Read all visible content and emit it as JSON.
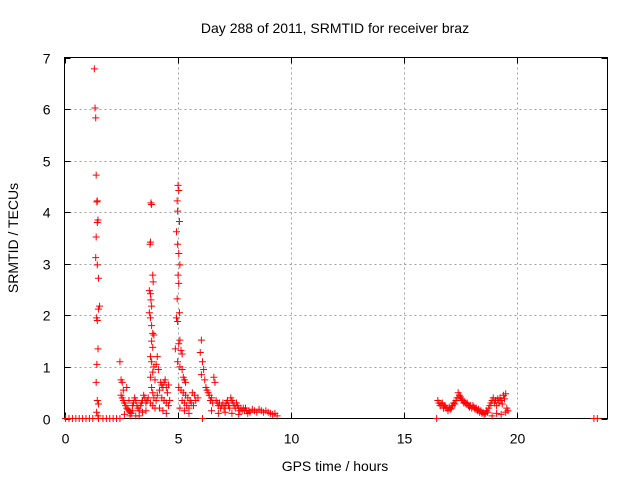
{
  "chart_data": {
    "type": "scatter",
    "title": "Day 288 of 2011, SRMTID for receiver braz",
    "xlabel": "GPS time / hours",
    "ylabel": "SRMTID / TECUs",
    "xlim": [
      0,
      24
    ],
    "ylim": [
      0,
      7
    ],
    "xticks": [
      0,
      5,
      10,
      15,
      20
    ],
    "yticks": [
      0,
      1,
      2,
      3,
      4,
      5,
      6,
      7
    ],
    "grid": true,
    "marker": "plus",
    "color": "#ff0000",
    "points": [
      [
        0.05,
        0
      ],
      [
        0.2,
        0
      ],
      [
        0.35,
        0
      ],
      [
        0.5,
        0
      ],
      [
        0.65,
        0
      ],
      [
        0.8,
        0
      ],
      [
        0.95,
        0
      ],
      [
        1.1,
        0
      ],
      [
        1.25,
        0
      ],
      [
        1.5,
        0
      ],
      [
        1.7,
        0
      ],
      [
        1.85,
        0
      ],
      [
        2.0,
        0
      ],
      [
        2.15,
        0
      ],
      [
        2.3,
        0
      ],
      [
        2.45,
        0
      ],
      [
        1.32,
        6.78
      ],
      [
        1.35,
        6.02
      ],
      [
        1.38,
        5.83
      ],
      [
        1.4,
        4.72
      ],
      [
        1.43,
        4.2
      ],
      [
        1.45,
        4.22
      ],
      [
        1.48,
        3.85
      ],
      [
        1.45,
        3.8
      ],
      [
        1.4,
        3.52
      ],
      [
        1.38,
        3.12
      ],
      [
        1.45,
        2.98
      ],
      [
        1.5,
        2.72
      ],
      [
        1.55,
        2.18
      ],
      [
        1.5,
        2.12
      ],
      [
        1.42,
        1.95
      ],
      [
        1.45,
        1.9
      ],
      [
        1.48,
        1.35
      ],
      [
        1.43,
        1.05
      ],
      [
        1.4,
        0.7
      ],
      [
        1.45,
        0.35
      ],
      [
        1.5,
        0.28
      ],
      [
        1.42,
        0.12
      ],
      [
        1.48,
        0.05
      ],
      [
        2.45,
        1.1
      ],
      [
        2.5,
        0.75
      ],
      [
        2.55,
        0.7
      ],
      [
        2.6,
        0.55
      ],
      [
        2.5,
        0.45
      ],
      [
        2.55,
        0.4
      ],
      [
        2.6,
        0.35
      ],
      [
        2.65,
        0.3
      ],
      [
        2.7,
        0.25
      ],
      [
        2.75,
        0.2
      ],
      [
        2.8,
        0.18
      ],
      [
        2.85,
        0.15
      ],
      [
        2.9,
        0.12
      ],
      [
        2.95,
        0.1
      ],
      [
        3.0,
        0.15
      ],
      [
        3.05,
        0.3
      ],
      [
        3.1,
        0.4
      ],
      [
        3.15,
        0.35
      ],
      [
        3.2,
        0.25
      ],
      [
        3.25,
        0.2
      ],
      [
        3.3,
        0.15
      ],
      [
        3.35,
        0.25
      ],
      [
        3.4,
        0.3
      ],
      [
        3.45,
        0.35
      ],
      [
        3.5,
        0.45
      ],
      [
        3.55,
        0.4
      ],
      [
        3.6,
        0.3
      ],
      [
        3.65,
        0.35
      ],
      [
        3.7,
        0.4
      ],
      [
        2.75,
        0.6
      ],
      [
        2.85,
        0.35
      ],
      [
        3.0,
        0.25
      ],
      [
        3.15,
        0.05
      ],
      [
        3.3,
        0.05
      ],
      [
        3.45,
        0.12
      ],
      [
        3.6,
        0.15
      ],
      [
        2.65,
        0.08
      ],
      [
        2.9,
        0.05
      ],
      [
        3.82,
        4.18
      ],
      [
        3.85,
        4.15
      ],
      [
        3.8,
        3.42
      ],
      [
        3.78,
        3.38
      ],
      [
        3.9,
        2.78
      ],
      [
        3.92,
        2.65
      ],
      [
        3.75,
        2.48
      ],
      [
        3.8,
        2.42
      ],
      [
        3.82,
        2.3
      ],
      [
        3.85,
        2.18
      ],
      [
        3.75,
        2.05
      ],
      [
        3.8,
        1.95
      ],
      [
        3.85,
        1.8
      ],
      [
        3.9,
        1.65
      ],
      [
        3.95,
        1.62
      ],
      [
        3.85,
        1.5
      ],
      [
        3.9,
        1.38
      ],
      [
        3.8,
        1.2
      ],
      [
        3.85,
        1.1
      ],
      [
        3.95,
        1.0
      ],
      [
        3.9,
        0.9
      ],
      [
        3.8,
        0.8
      ],
      [
        4.0,
        0.75
      ],
      [
        3.85,
        0.6
      ],
      [
        3.9,
        0.5
      ],
      [
        3.95,
        0.4
      ],
      [
        4.05,
        0.35
      ],
      [
        3.8,
        0.3
      ],
      [
        3.9,
        0.25
      ],
      [
        4.0,
        0.2
      ],
      [
        4.1,
        0.45
      ],
      [
        4.2,
        0.55
      ],
      [
        4.25,
        0.7
      ],
      [
        4.3,
        0.65
      ],
      [
        4.35,
        0.6
      ],
      [
        4.4,
        0.7
      ],
      [
        4.45,
        0.75
      ],
      [
        4.5,
        0.6
      ],
      [
        4.55,
        0.5
      ],
      [
        4.6,
        0.65
      ],
      [
        4.3,
        0.4
      ],
      [
        4.4,
        0.35
      ],
      [
        4.5,
        0.3
      ],
      [
        4.6,
        0.25
      ],
      [
        4.65,
        0.35
      ],
      [
        4.2,
        0.2
      ],
      [
        4.35,
        0.15
      ],
      [
        4.5,
        0.1
      ],
      [
        4.1,
        1.2
      ],
      [
        4.15,
        0.95
      ],
      [
        4.05,
        1.05
      ],
      [
        5.02,
        4.52
      ],
      [
        5.05,
        4.42
      ],
      [
        4.98,
        4.22
      ],
      [
        5.0,
        4.02
      ],
      [
        5.08,
        3.82
      ],
      [
        4.95,
        3.62
      ],
      [
        5.0,
        3.38
      ],
      [
        5.05,
        3.2
      ],
      [
        5.1,
        2.98
      ],
      [
        5.02,
        2.78
      ],
      [
        5.05,
        2.62
      ],
      [
        4.98,
        2.32
      ],
      [
        5.08,
        2.05
      ],
      [
        4.95,
        1.95
      ],
      [
        5.0,
        1.88
      ],
      [
        5.1,
        1.52
      ],
      [
        5.05,
        1.45
      ],
      [
        4.9,
        1.35
      ],
      [
        5.15,
        1.32
      ],
      [
        5.2,
        1.25
      ],
      [
        5.0,
        1.1
      ],
      [
        5.1,
        1.0
      ],
      [
        5.2,
        0.95
      ],
      [
        5.25,
        0.8
      ],
      [
        5.3,
        0.75
      ],
      [
        5.35,
        0.7
      ],
      [
        5.05,
        0.6
      ],
      [
        5.15,
        0.55
      ],
      [
        5.25,
        0.5
      ],
      [
        5.35,
        0.45
      ],
      [
        5.45,
        0.4
      ],
      [
        5.55,
        0.35
      ],
      [
        5.65,
        0.5
      ],
      [
        5.75,
        0.45
      ],
      [
        5.2,
        0.35
      ],
      [
        5.3,
        0.3
      ],
      [
        5.4,
        0.25
      ],
      [
        5.5,
        0.2
      ],
      [
        5.6,
        0.3
      ],
      [
        5.7,
        0.25
      ],
      [
        5.8,
        0.35
      ],
      [
        5.9,
        0.4
      ],
      [
        5.1,
        0.2
      ],
      [
        5.3,
        0.15
      ],
      [
        5.5,
        0.1
      ],
      [
        6.05,
        1.52
      ],
      [
        6.0,
        1.28
      ],
      [
        6.1,
        1.1
      ],
      [
        6.15,
        0.95
      ],
      [
        6.05,
        0.85
      ],
      [
        6.2,
        0.75
      ],
      [
        6.25,
        0.6
      ],
      [
        6.3,
        0.55
      ],
      [
        6.35,
        0.5
      ],
      [
        6.1,
        0.0
      ],
      [
        6.4,
        0.45
      ],
      [
        6.45,
        0.35
      ],
      [
        6.5,
        0.4
      ],
      [
        6.55,
        0.3
      ],
      [
        6.6,
        0.8
      ],
      [
        6.65,
        0.7
      ],
      [
        6.7,
        0.35
      ],
      [
        6.75,
        0.3
      ],
      [
        6.8,
        0.25
      ],
      [
        6.85,
        0.3
      ],
      [
        6.9,
        0.2
      ],
      [
        6.95,
        0.25
      ],
      [
        7.0,
        0.3
      ],
      [
        7.05,
        0.2
      ],
      [
        7.1,
        0.25
      ],
      [
        7.15,
        0.3
      ],
      [
        7.2,
        0.35
      ],
      [
        7.25,
        0.25
      ],
      [
        7.3,
        0.2
      ],
      [
        7.35,
        0.4
      ],
      [
        7.4,
        0.35
      ],
      [
        7.45,
        0.3
      ],
      [
        7.5,
        0.25
      ],
      [
        7.55,
        0.2
      ],
      [
        7.6,
        0.3
      ],
      [
        7.65,
        0.25
      ],
      [
        7.7,
        0.2
      ],
      [
        7.75,
        0.15
      ],
      [
        7.8,
        0.2
      ],
      [
        7.85,
        0.15
      ],
      [
        7.9,
        0.2
      ],
      [
        7.95,
        0.15
      ],
      [
        8.0,
        0.2
      ],
      [
        8.05,
        0.15
      ],
      [
        8.1,
        0.1
      ],
      [
        8.15,
        0.15
      ],
      [
        8.2,
        0.12
      ],
      [
        8.3,
        0.18
      ],
      [
        8.4,
        0.15
      ],
      [
        8.5,
        0.12
      ],
      [
        8.6,
        0.18
      ],
      [
        8.7,
        0.15
      ],
      [
        8.8,
        0.12
      ],
      [
        8.9,
        0.15
      ],
      [
        9.0,
        0.12
      ],
      [
        9.1,
        0.1
      ],
      [
        9.2,
        0.08
      ],
      [
        9.3,
        0.1
      ],
      [
        9.4,
        0.05
      ],
      [
        6.5,
        0.15
      ],
      [
        6.8,
        0.1
      ],
      [
        7.1,
        0.12
      ],
      [
        7.4,
        0.1
      ],
      [
        7.7,
        0.08
      ],
      [
        16.45,
        0
      ],
      [
        16.5,
        0.35
      ],
      [
        16.55,
        0.3
      ],
      [
        16.6,
        0.25
      ],
      [
        16.65,
        0.28
      ],
      [
        16.7,
        0.3
      ],
      [
        16.75,
        0.2
      ],
      [
        16.8,
        0.25
      ],
      [
        16.85,
        0.22
      ],
      [
        16.9,
        0.2
      ],
      [
        16.95,
        0.15
      ],
      [
        17.0,
        0.22
      ],
      [
        17.05,
        0.18
      ],
      [
        17.1,
        0.2
      ],
      [
        17.15,
        0.25
      ],
      [
        17.2,
        0.3
      ],
      [
        17.25,
        0.28
      ],
      [
        17.3,
        0.35
      ],
      [
        17.35,
        0.4
      ],
      [
        17.4,
        0.5
      ],
      [
        17.45,
        0.45
      ],
      [
        17.5,
        0.42
      ],
      [
        17.55,
        0.38
      ],
      [
        17.6,
        0.35
      ],
      [
        17.65,
        0.3
      ],
      [
        17.7,
        0.32
      ],
      [
        17.75,
        0.28
      ],
      [
        17.8,
        0.3
      ],
      [
        17.85,
        0.25
      ],
      [
        17.9,
        0.22
      ],
      [
        17.95,
        0.25
      ],
      [
        18.0,
        0.2
      ],
      [
        18.05,
        0.25
      ],
      [
        18.1,
        0.22
      ],
      [
        18.15,
        0.18
      ],
      [
        18.2,
        0.2
      ],
      [
        18.25,
        0.15
      ],
      [
        18.3,
        0.18
      ],
      [
        18.35,
        0.12
      ],
      [
        18.4,
        0.15
      ],
      [
        18.45,
        0.1
      ],
      [
        18.5,
        0.12
      ],
      [
        18.55,
        0.08
      ],
      [
        18.6,
        0.1
      ],
      [
        18.65,
        0.15
      ],
      [
        18.7,
        0.12
      ],
      [
        18.75,
        0.2
      ],
      [
        18.8,
        0.25
      ],
      [
        18.85,
        0.3
      ],
      [
        18.9,
        0.35
      ],
      [
        18.95,
        0.4
      ],
      [
        19.0,
        0.3
      ],
      [
        19.05,
        0.35
      ],
      [
        19.1,
        0.25
      ],
      [
        19.15,
        0.38
      ],
      [
        19.2,
        0.3
      ],
      [
        19.25,
        0.4
      ],
      [
        19.3,
        0.35
      ],
      [
        19.35,
        0.28
      ],
      [
        19.4,
        0.45
      ],
      [
        19.45,
        0.38
      ],
      [
        19.5,
        0.48
      ],
      [
        19.55,
        0.2
      ],
      [
        19.6,
        0.15
      ],
      [
        18.9,
        0.05
      ],
      [
        19.1,
        0.1
      ],
      [
        19.3,
        0.08
      ],
      [
        19.5,
        0.12
      ],
      [
        23.4,
        0
      ],
      [
        23.55,
        0
      ]
    ]
  }
}
